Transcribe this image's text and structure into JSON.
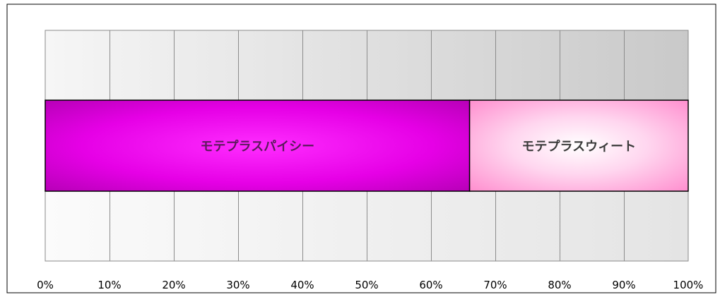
{
  "chart_data": {
    "type": "bar",
    "orientation": "horizontal",
    "stacking": "percent",
    "categories": [
      ""
    ],
    "series": [
      {
        "name": "モテプラスパイシー",
        "values": [
          66
        ],
        "color": "#e600e6"
      },
      {
        "name": "モテプラスウィート",
        "values": [
          34
        ],
        "color": "#ff9ad4"
      }
    ],
    "data_labels": [
      "モテプラスパイシー",
      "モテプラスウィート"
    ],
    "xlim": [
      0,
      100
    ],
    "x_ticks": [
      "0%",
      "10%",
      "20%",
      "30%",
      "40%",
      "50%",
      "60%",
      "70%",
      "80%",
      "90%",
      "100%"
    ],
    "grid": true,
    "legend": "none",
    "title": "",
    "xlabel": "",
    "ylabel": ""
  }
}
